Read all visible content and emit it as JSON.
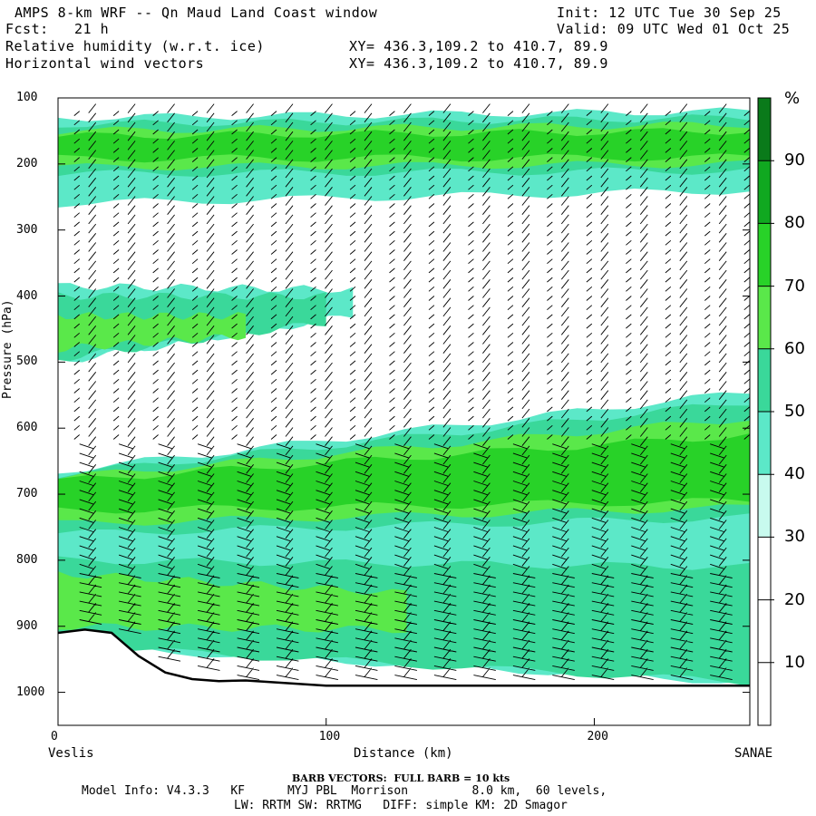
{
  "header": {
    "title": "AMPS 8-km WRF -- Qn Maud Land Coast window",
    "fcst_label": "Fcst:",
    "fcst_value": "21 h",
    "init": "Init: 12 UTC Tue 30 Sep 25",
    "valid": "Valid: 09 UTC Wed 01 Oct 25",
    "field1": "Relative humidity (w.r.t. ice)",
    "field2": "Horizontal wind vectors",
    "xy1": "XY= 436.3,109.2 to 410.7, 89.9",
    "xy2": "XY= 436.3,109.2 to 410.7, 89.9"
  },
  "colorbar": {
    "unit": "%",
    "labels": [
      "10",
      "20",
      "30",
      "40",
      "50",
      "60",
      "70",
      "80",
      "90"
    ],
    "colors": [
      "#ffffff",
      "#ffffff",
      "#ffffff",
      "#c8faee",
      "#5ce8c8",
      "#3ad89a",
      "#5ae84a",
      "#28d228",
      "#10a820",
      "#0a7a1a"
    ]
  },
  "footer": {
    "barb_note": "BARB VECTORS:  FULL BARB = 10 kts",
    "model_info": "Model Info: V4.3.3   KF      MYJ PBL  Morrison         8.0 km,  60 levels,",
    "model_info2": "LW: RRTM SW: RRTMG   DIFF: simple KM: 2D Smagor"
  },
  "chart_data": {
    "type": "heatmap",
    "title": "Relative humidity (w.r.t. ice) and horizontal wind vectors cross-section",
    "xlabel": "Distance (km)",
    "ylabel": "Pressure (hPa)",
    "x_start_label": "Veslis",
    "x_end_label": "SANAE",
    "xlim": [
      0,
      258
    ],
    "ylim": [
      1050,
      100
    ],
    "xticks": [
      0,
      100,
      200
    ],
    "yticks": [
      100,
      200,
      300,
      400,
      500,
      600,
      700,
      800,
      900,
      1000
    ],
    "color_levels_percent": [
      0,
      10,
      20,
      30,
      40,
      50,
      60,
      70,
      80,
      90,
      100
    ],
    "humid_layers": [
      {
        "level": 40,
        "x": [
          0,
          258
        ],
        "top": [
          130,
          120
        ],
        "bot": [
          260,
          240
        ]
      },
      {
        "level": 50,
        "x": [
          0,
          258
        ],
        "top": [
          140,
          130
        ],
        "bot": [
          215,
          210
        ]
      },
      {
        "level": 60,
        "x": [
          0,
          258
        ],
        "top": [
          150,
          140
        ],
        "bot": [
          205,
          200
        ]
      },
      {
        "level": 70,
        "x": [
          0,
          258
        ],
        "top": [
          158,
          150
        ],
        "bot": [
          192,
          190
        ]
      },
      {
        "level": 40,
        "x": [
          0,
          110
        ],
        "top": [
          385,
          390
        ],
        "bot": [
          500,
          430
        ]
      },
      {
        "level": 50,
        "x": [
          0,
          100
        ],
        "top": [
          400,
          400
        ],
        "bot": [
          495,
          440
        ]
      },
      {
        "level": 60,
        "x": [
          0,
          70
        ],
        "top": [
          430,
          430
        ],
        "bot": [
          480,
          460
        ]
      },
      {
        "level": 40,
        "x": [
          0,
          258
        ],
        "top": [
          665,
          545
        ],
        "bot": [
          930,
          985
        ]
      },
      {
        "level": 50,
        "x": [
          0,
          258
        ],
        "top": [
          670,
          560
        ],
        "bot": [
          760,
          735
        ]
      },
      {
        "level": 60,
        "x": [
          0,
          258
        ],
        "top": [
          675,
          585
        ],
        "bot": [
          745,
          720
        ]
      },
      {
        "level": 70,
        "x": [
          0,
          258
        ],
        "top": [
          680,
          610
        ],
        "bot": [
          725,
          710
        ]
      },
      {
        "level": 50,
        "x": [
          0,
          258
        ],
        "top": [
          800,
          810
        ],
        "bot": [
          930,
          985
        ]
      },
      {
        "level": 60,
        "x": [
          0,
          130
        ],
        "top": [
          820,
          850
        ],
        "bot": [
          900,
          905
        ]
      }
    ],
    "terrain_hpa": {
      "x": [
        0,
        10,
        20,
        30,
        40,
        50,
        60,
        70,
        100,
        258
      ],
      "p": [
        910,
        905,
        910,
        945,
        970,
        980,
        983,
        982,
        990,
        990
      ]
    }
  }
}
